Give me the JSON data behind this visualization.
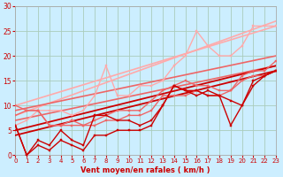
{
  "bg_color": "#cceeff",
  "grid_color": "#aaccbb",
  "xlabel": "Vent moyen/en rafales ( km/h )",
  "xlim": [
    0,
    23
  ],
  "ylim": [
    0,
    30
  ],
  "yticks": [
    0,
    5,
    10,
    15,
    20,
    25,
    30
  ],
  "xticks": [
    0,
    1,
    2,
    3,
    4,
    5,
    6,
    7,
    8,
    9,
    10,
    11,
    12,
    13,
    14,
    15,
    16,
    17,
    18,
    19,
    20,
    21,
    22,
    23
  ],
  "series": [
    {
      "x": [
        0,
        1,
        2,
        3,
        4,
        5,
        6,
        7,
        8,
        9,
        10,
        11,
        12,
        13,
        14,
        15,
        16,
        17,
        18,
        19,
        20,
        21,
        22,
        23
      ],
      "y": [
        6,
        0,
        2,
        1,
        3,
        2,
        1,
        4,
        4,
        5,
        5,
        5,
        6,
        10,
        14,
        13,
        12,
        13,
        12,
        6,
        10,
        14,
        16,
        17
      ],
      "color": "#cc0000",
      "lw": 1.0,
      "marker": "s",
      "ms": 2.0,
      "zorder": 6
    },
    {
      "x": [
        0,
        1,
        2,
        3,
        4,
        5,
        6,
        7,
        8,
        9,
        10,
        11,
        12,
        13,
        14,
        15,
        16,
        17,
        18,
        19,
        20,
        21,
        22,
        23
      ],
      "y": [
        6,
        0,
        3,
        2,
        5,
        3,
        2,
        8,
        8,
        7,
        7,
        6,
        7,
        10,
        14,
        13,
        13,
        12,
        12,
        11,
        10,
        15,
        16,
        17
      ],
      "color": "#cc0000",
      "lw": 1.0,
      "marker": "s",
      "ms": 2.0,
      "zorder": 6
    },
    {
      "x": [
        0,
        23
      ],
      "y": [
        4,
        17
      ],
      "color": "#cc0000",
      "lw": 1.3,
      "marker": null,
      "ms": 0,
      "zorder": 4
    },
    {
      "x": [
        0,
        23
      ],
      "y": [
        5,
        18
      ],
      "color": "#cc0000",
      "lw": 1.3,
      "marker": null,
      "ms": 0,
      "zorder": 4
    },
    {
      "x": [
        0,
        1,
        2,
        3,
        4,
        5,
        6,
        7,
        8,
        9,
        10,
        11,
        12,
        13,
        14,
        15,
        16,
        17,
        18,
        19,
        20,
        21,
        22,
        23
      ],
      "y": [
        8,
        9,
        9,
        6,
        6,
        6,
        6,
        6,
        7,
        7,
        8,
        8,
        9,
        12,
        12,
        12,
        13,
        12,
        12,
        13,
        15,
        16,
        16,
        17
      ],
      "color": "#ee6666",
      "lw": 1.0,
      "marker": "s",
      "ms": 2.0,
      "zorder": 5
    },
    {
      "x": [
        0,
        1,
        2,
        3,
        4,
        5,
        6,
        7,
        8,
        9,
        10,
        11,
        12,
        13,
        14,
        15,
        16,
        17,
        18,
        19,
        20,
        21,
        22,
        23
      ],
      "y": [
        10,
        9,
        9,
        6,
        6,
        7,
        6,
        7,
        8,
        9,
        9,
        9,
        11,
        13,
        14,
        15,
        14,
        14,
        13,
        13,
        16,
        17,
        17,
        19
      ],
      "color": "#ee6666",
      "lw": 1.0,
      "marker": "s",
      "ms": 2.0,
      "zorder": 5
    },
    {
      "x": [
        0,
        23
      ],
      "y": [
        7,
        18
      ],
      "color": "#ee6666",
      "lw": 1.2,
      "marker": null,
      "ms": 0,
      "zorder": 3
    },
    {
      "x": [
        0,
        23
      ],
      "y": [
        9,
        20
      ],
      "color": "#ee6666",
      "lw": 1.2,
      "marker": null,
      "ms": 0,
      "zorder": 3
    },
    {
      "x": [
        0,
        1,
        2,
        3,
        4,
        5,
        6,
        7,
        8,
        9,
        10,
        11,
        12,
        13,
        14,
        15,
        16,
        17,
        18,
        19,
        20,
        21,
        22,
        23
      ],
      "y": [
        6,
        7,
        9,
        9,
        9,
        8,
        9,
        12,
        18,
        12,
        12,
        14,
        14,
        15,
        18,
        20,
        25,
        22,
        20,
        20,
        22,
        26,
        26,
        26
      ],
      "color": "#ffaaaa",
      "lw": 1.0,
      "marker": "s",
      "ms": 2.0,
      "zorder": 4
    },
    {
      "x": [
        0,
        23
      ],
      "y": [
        8,
        27
      ],
      "color": "#ffaaaa",
      "lw": 1.2,
      "marker": null,
      "ms": 0,
      "zorder": 2
    },
    {
      "x": [
        0,
        23
      ],
      "y": [
        10,
        26
      ],
      "color": "#ffaaaa",
      "lw": 1.2,
      "marker": null,
      "ms": 0,
      "zorder": 2
    }
  ]
}
